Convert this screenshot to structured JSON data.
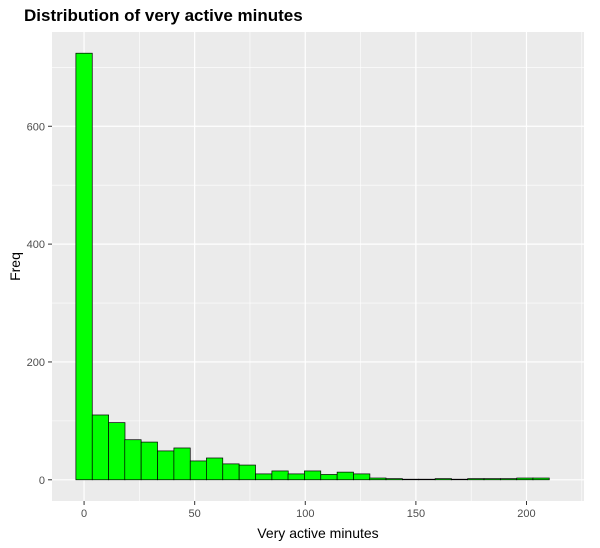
{
  "chart_data": {
    "type": "bar",
    "title": "Distribution of very active minutes",
    "xlabel": "Very active minutes",
    "ylabel": "Freq",
    "bin_width": 7.4,
    "bins": [
      {
        "x": 0,
        "count": 724
      },
      {
        "x": 7.4,
        "count": 110
      },
      {
        "x": 14.8,
        "count": 97
      },
      {
        "x": 22.1,
        "count": 68
      },
      {
        "x": 29.5,
        "count": 64
      },
      {
        "x": 36.9,
        "count": 49
      },
      {
        "x": 44.3,
        "count": 54
      },
      {
        "x": 51.7,
        "count": 32
      },
      {
        "x": 59.0,
        "count": 37
      },
      {
        "x": 66.4,
        "count": 27
      },
      {
        "x": 73.8,
        "count": 25
      },
      {
        "x": 81.2,
        "count": 10
      },
      {
        "x": 88.6,
        "count": 15
      },
      {
        "x": 95.9,
        "count": 10
      },
      {
        "x": 103.3,
        "count": 15
      },
      {
        "x": 110.7,
        "count": 9
      },
      {
        "x": 118.1,
        "count": 13
      },
      {
        "x": 125.5,
        "count": 10
      },
      {
        "x": 132.8,
        "count": 3
      },
      {
        "x": 140.2,
        "count": 2
      },
      {
        "x": 147.6,
        "count": 1
      },
      {
        "x": 155.0,
        "count": 1
      },
      {
        "x": 162.4,
        "count": 2
      },
      {
        "x": 169.7,
        "count": 1
      },
      {
        "x": 177.1,
        "count": 2
      },
      {
        "x": 184.5,
        "count": 2
      },
      {
        "x": 191.9,
        "count": 2
      },
      {
        "x": 199.3,
        "count": 3
      },
      {
        "x": 206.6,
        "count": 3
      }
    ],
    "xlim": [
      -14.5,
      226
    ],
    "ylim": [
      -36,
      760
    ],
    "x_ticks": [
      0,
      50,
      100,
      150,
      200
    ],
    "y_ticks": [
      0,
      200,
      400,
      600
    ],
    "grid": true,
    "colors": {
      "fill": "#00ff00",
      "outline": "#000000",
      "panel": "#ebebeb",
      "grid": "#ffffff"
    }
  }
}
